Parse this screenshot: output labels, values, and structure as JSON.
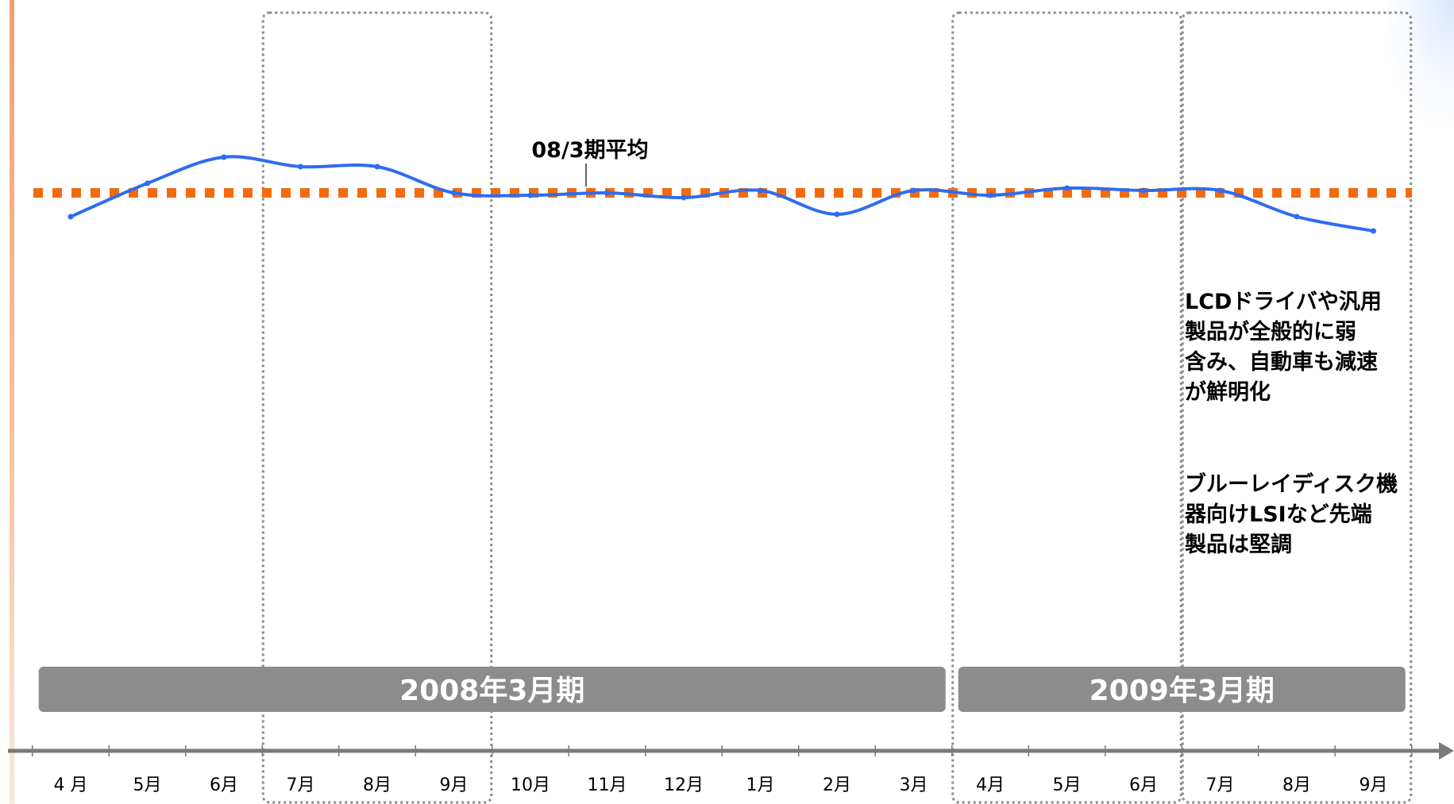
{
  "colors": {
    "series_line": "#2e6cf0",
    "average_line": "#f26b0f",
    "period_bar": "#8c8c8c",
    "period_text": "#ffffff",
    "period_box_border": "#8a8a8a",
    "axis": "#7a7a7a",
    "left_accent": "#f0a070"
  },
  "chart_data": {
    "type": "line",
    "title": "",
    "xlabel": "",
    "ylabel": "",
    "categories": [
      "4 月",
      "5月",
      "6月",
      "7月",
      "8月",
      "9月",
      "10月",
      "11月",
      "12月",
      "1月",
      "2月",
      "3月",
      "4月",
      "5月",
      "6月",
      "7月",
      "8月",
      "9月"
    ],
    "series": [
      {
        "name": "",
        "values": [
          -10,
          4,
          15,
          11,
          11,
          0,
          -1,
          0,
          -2,
          1,
          -9,
          1,
          -1,
          2,
          1,
          1,
          -10,
          -16
        ]
      }
    ],
    "ylim": [
      -100,
      80
    ],
    "reference_line": {
      "label": "08/3期平均",
      "value": 0
    },
    "periods": [
      {
        "label": "2008年3月期",
        "from": 0,
        "to": 11
      },
      {
        "label": "2009年3月期",
        "from": 12,
        "to": 17
      }
    ],
    "highlight_ranges": [
      {
        "from": 3,
        "to": 5
      },
      {
        "from": 12,
        "to": 14
      },
      {
        "from": 15,
        "to": 17
      }
    ],
    "grid": false,
    "legend": "none",
    "annotations": [
      "LCDドライバや汎用\n製品が全般的に弱\n含み、自動車も減速\nが鮮明化",
      "ブルーレイディスク機\n器向けLSIなど先端\n製品は堅調"
    ]
  }
}
